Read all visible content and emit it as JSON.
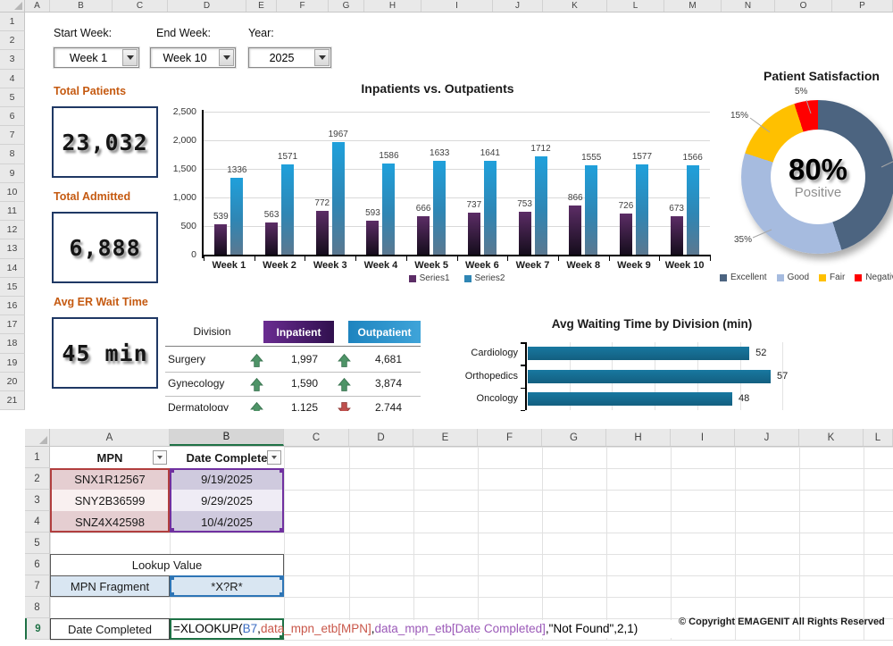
{
  "top_sheet": {
    "columns": [
      "A",
      "B",
      "C",
      "D",
      "E",
      "F",
      "G",
      "H",
      "I",
      "J",
      "K",
      "L",
      "M",
      "N",
      "O",
      "P"
    ],
    "row_count": 21,
    "filters": [
      {
        "id": "start-week",
        "label": "Start Week:",
        "value": "Week 1"
      },
      {
        "id": "end-week",
        "label": "End Week:",
        "value": "Week 10"
      },
      {
        "id": "year",
        "label": "Year:",
        "value": "2025"
      }
    ],
    "kpis": [
      {
        "id": "total-patients",
        "label": "Total Patients",
        "value": "23,032"
      },
      {
        "id": "total-admitted",
        "label": "Total Admitted",
        "value": "6,888"
      },
      {
        "id": "avg-er-wait",
        "label": "Avg ER Wait Time",
        "value": "45 min"
      }
    ],
    "division_table": {
      "col_division": "Division",
      "col_inpatient": "Inpatient",
      "col_outpatient": "Outpatient",
      "inpatient_header_colors": [
        "#6a2c91",
        "#30104e"
      ],
      "outpatient_header_colors": [
        "#1e84bf",
        "#3fa4d9"
      ],
      "trend_colors": {
        "up": "#4e9467",
        "down": "#c0504d"
      },
      "rows": [
        {
          "division": "Surgery",
          "inpatient": "1,997",
          "in_trend": "up",
          "outpatient": "4,681",
          "out_trend": "up"
        },
        {
          "division": "Gynecology",
          "inpatient": "1,590",
          "in_trend": "up",
          "outpatient": "3,874",
          "out_trend": "up"
        },
        {
          "division": "Dermatology",
          "inpatient": "1,125",
          "in_trend": "up",
          "outpatient": "2,744",
          "out_trend": "down"
        }
      ]
    }
  },
  "chart_data": [
    {
      "type": "bar",
      "title": "Inpatients vs. Outpatients",
      "categories": [
        "Week 1",
        "Week 2",
        "Week 3",
        "Week 4",
        "Week 5",
        "Week 6",
        "Week 7",
        "Week 8",
        "Week 9",
        "Week 10"
      ],
      "series": [
        {
          "name": "Series1",
          "color_top": "#5c2d66",
          "color_bottom": "#150d1c",
          "values": [
            539,
            563,
            772,
            593,
            666,
            737,
            753,
            866,
            726,
            673
          ]
        },
        {
          "name": "Series2",
          "color_top": "#1fa0db",
          "color_mid": "#2f86b4",
          "color_bottom": "#5b7890",
          "values": [
            1336,
            1571,
            1967,
            1586,
            1633,
            1641,
            1712,
            1555,
            1577,
            1566
          ]
        }
      ],
      "ylim": [
        0,
        2500
      ],
      "ytick_step": 500,
      "yticks": [
        "0",
        "500",
        "1,000",
        "1,500",
        "2,000",
        "2,500"
      ],
      "grid": true,
      "legend_position": "bottom"
    },
    {
      "type": "pie",
      "subtype": "donut",
      "title": "Patient Satisfaction",
      "center_value": "80%",
      "center_label": "Positive",
      "slices": [
        {
          "label": "Excellent",
          "pct": 45,
          "color": "#4c6480",
          "pct_label": ""
        },
        {
          "label": "Good",
          "pct": 35,
          "color": "#a6bbdf",
          "pct_label": "35%"
        },
        {
          "label": "Fair",
          "pct": 15,
          "color": "#ffc000",
          "pct_label": "15%"
        },
        {
          "label": "Negative",
          "pct": 5,
          "color": "#ff0000",
          "pct_label": "5%"
        }
      ],
      "legend_position": "bottom"
    },
    {
      "type": "bar-horizontal",
      "title": "Avg Waiting Time by Division (min)",
      "categories": [
        "Cardiology",
        "Orthopedics",
        "Oncology"
      ],
      "values": [
        52,
        57,
        48
      ],
      "color": "#1878a0",
      "xlim": [
        0,
        60
      ],
      "grid": true
    }
  ],
  "bottom_sheet": {
    "columns": [
      "A",
      "B",
      "C",
      "D",
      "E",
      "F",
      "G",
      "H",
      "I",
      "J",
      "K",
      "L"
    ],
    "row_count": 9,
    "selected_column": "B",
    "selected_row": "9",
    "mpn_table": {
      "headers": [
        "MPN",
        "Date Complete"
      ],
      "rows": [
        [
          "SNX1R12567",
          "9/19/2025"
        ],
        [
          "SNY2B36599",
          "9/29/2025"
        ],
        [
          "SNZ4X42598",
          "10/4/2025"
        ]
      ],
      "fills_a": [
        "#e5ced1",
        "#f9f0f0",
        "#e5ced1"
      ],
      "fills_b": [
        "#cfcade",
        "#efecf5",
        "#cfcade"
      ]
    },
    "lookup": {
      "title": "Lookup Value",
      "label": "MPN Fragment",
      "value": "*X?R*",
      "fill": "#d9e6f2"
    },
    "result": {
      "label": "Date Completed"
    },
    "formula_parts": [
      {
        "text": "=XLOOKUP(",
        "color": "#000000"
      },
      {
        "text": "B7",
        "color": "#3c6ec3"
      },
      {
        "text": ",",
        "color": "#000000"
      },
      {
        "text": "data_mpn_etb[MPN]",
        "color": "#c9574a"
      },
      {
        "text": ",",
        "color": "#000000"
      },
      {
        "text": "data_mpn_etb[Date Completed]",
        "color": "#9b59b8"
      },
      {
        "text": ",\"Not Found\",2,1)",
        "color": "#000000"
      }
    ],
    "copyright": "© Copyright EMAGENIT All Rights Reserved"
  },
  "colors": {
    "label_orange": "#c55a11",
    "kpi_border": "#1f3864",
    "excel_green": "#1e7145",
    "ref_red": "#b13e3e",
    "ref_purple": "#7030a0",
    "ref_blue": "#2e75b6"
  }
}
